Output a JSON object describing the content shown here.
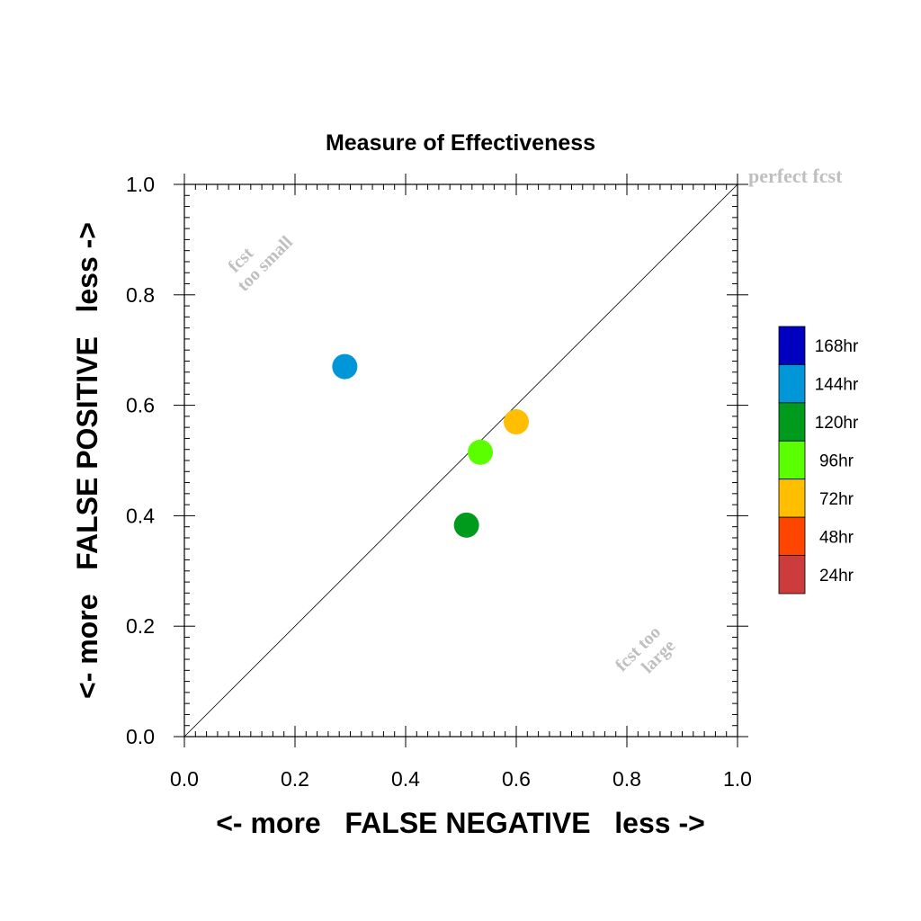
{
  "chart_data": {
    "type": "scatter",
    "title": "Measure of Effectiveness",
    "xlabel": "<- more   FALSE NEGATIVE   less ->",
    "ylabel": "<- more   FALSE POSITIVE   less ->",
    "xlim": [
      0.0,
      1.0
    ],
    "ylim": [
      0.0,
      1.0
    ],
    "xticks": [
      "0.0",
      "0.2",
      "0.4",
      "0.6",
      "0.8",
      "1.0"
    ],
    "yticks": [
      "0.0",
      "0.2",
      "0.4",
      "0.6",
      "0.8",
      "1.0"
    ],
    "grid": false,
    "reference_line": {
      "from": [
        0.0,
        0.0
      ],
      "to": [
        1.0,
        1.0
      ]
    },
    "annotations": {
      "top_right": "perfect fcst",
      "upper_left_line1": "fcst",
      "upper_left_line2": "too small",
      "lower_right_line1": "fcst too",
      "lower_right_line2": "large"
    },
    "legend": {
      "placement": "right",
      "entries": [
        {
          "label": "168hr",
          "color": "#0000c0"
        },
        {
          "label": "144hr",
          "color": "#0096d8"
        },
        {
          "label": "120hr",
          "color": "#009a1c"
        },
        {
          "label": "96hr",
          "color": "#5aff00"
        },
        {
          "label": "72hr",
          "color": "#ffbe00"
        },
        {
          "label": "48hr",
          "color": "#ff4600"
        },
        {
          "label": "24hr",
          "color": "#cd3c3c"
        }
      ]
    },
    "points": [
      {
        "series": "144hr",
        "x": 0.29,
        "y": 0.67,
        "color": "#0096d8"
      },
      {
        "series": "72hr",
        "x": 0.6,
        "y": 0.57,
        "color": "#ffbe00"
      },
      {
        "series": "96hr",
        "x": 0.535,
        "y": 0.515,
        "color": "#5aff00"
      },
      {
        "series": "120hr",
        "x": 0.51,
        "y": 0.383,
        "color": "#009a1c"
      }
    ],
    "colors": {
      "annotation": "#bfbfbf",
      "axis": "#000000"
    }
  }
}
